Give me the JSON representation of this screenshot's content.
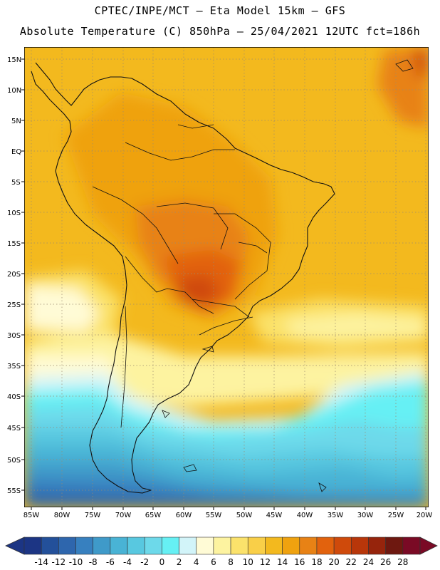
{
  "header": {
    "title_line1": "CPTEC/INPE/MCT –   Eta Model 15km – GFS",
    "title_line2": "Absolute Temperature (C) 850hPa – 25/04/2021 12UTC fct=186h"
  },
  "map": {
    "lat_labels": [
      "15N",
      "10N",
      "5N",
      "EQ",
      "5S",
      "10S",
      "15S",
      "20S",
      "25S",
      "30S",
      "35S",
      "40S",
      "45S",
      "50S",
      "55S"
    ],
    "lon_labels": [
      "85W",
      "80W",
      "75W",
      "70W",
      "65W",
      "60W",
      "55W",
      "50W",
      "45W",
      "40W",
      "35W",
      "30W",
      "25W",
      "20W"
    ],
    "graticule": "dotted"
  },
  "colorbar": {
    "labels": [
      "-14",
      "-12",
      "-10",
      "-8",
      "-6",
      "-4",
      "-2",
      "0",
      "2",
      "4",
      "6",
      "8",
      "10",
      "12",
      "14",
      "16",
      "18",
      "20",
      "22",
      "24",
      "26",
      "28"
    ],
    "colors": [
      "#1c3584",
      "#23509a",
      "#2e66ad",
      "#3780bf",
      "#3f9ac9",
      "#49b3d5",
      "#58c8e0",
      "#6dd9ea",
      "#66f0f4",
      "#d2f4f9",
      "#fffbd6",
      "#fdf3a0",
      "#fbe26b",
      "#f9cf48",
      "#f3b91e",
      "#efa20f",
      "#e88215",
      "#e2620d",
      "#cf4a0b",
      "#b8360a",
      "#96240c",
      "#6e1810",
      "#7a0a25"
    ]
  }
}
